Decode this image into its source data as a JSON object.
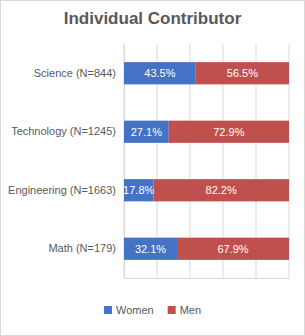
{
  "chart_data": {
    "type": "bar",
    "title": "Individual Contributor",
    "orientation": "horizontal",
    "stacked": true,
    "data_labels": true,
    "categories": [
      "Science (N=844)",
      "Technology (N=1245)",
      "Engineering (N=1663)",
      "Math (N=179)"
    ],
    "series": [
      {
        "name": "Women",
        "color": "#4472c4",
        "values": [
          43.5,
          27.1,
          17.8,
          32.1
        ],
        "value_labels": [
          "43.5%",
          "27.1%",
          "17.8%",
          "32.1%"
        ]
      },
      {
        "name": "Men",
        "color": "#c0504d",
        "values": [
          56.5,
          72.9,
          82.2,
          67.9
        ],
        "value_labels": [
          "56.5%",
          "72.9%",
          "82.2%",
          "67.9%"
        ]
      }
    ],
    "xlim": [
      0,
      100
    ],
    "xticks": [
      0,
      20,
      40,
      60,
      80,
      100
    ],
    "grid": true,
    "tick_labels": "y",
    "legend": "bottom"
  }
}
